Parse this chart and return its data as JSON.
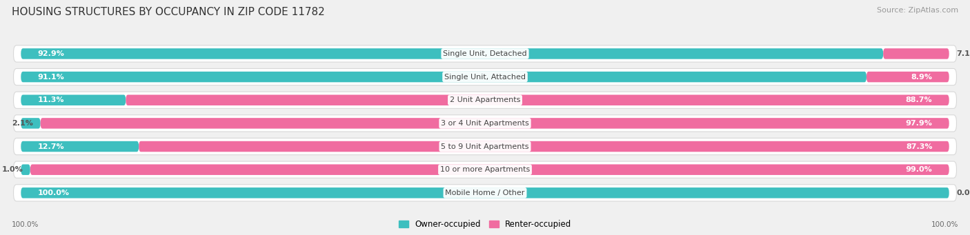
{
  "title": "HOUSING STRUCTURES BY OCCUPANCY IN ZIP CODE 11782",
  "source": "Source: ZipAtlas.com",
  "categories": [
    "Single Unit, Detached",
    "Single Unit, Attached",
    "2 Unit Apartments",
    "3 or 4 Unit Apartments",
    "5 to 9 Unit Apartments",
    "10 or more Apartments",
    "Mobile Home / Other"
  ],
  "owner_pct": [
    92.9,
    91.1,
    11.3,
    2.1,
    12.7,
    1.0,
    100.0
  ],
  "renter_pct": [
    7.1,
    8.9,
    88.7,
    97.9,
    87.3,
    99.0,
    0.0
  ],
  "owner_color": "#3DBFBF",
  "renter_color": "#F06CA0",
  "bg_color": "#F0F0F0",
  "row_bg_color": "#FFFFFF",
  "row_border_color": "#D8D8D8",
  "title_fontsize": 11,
  "source_fontsize": 8,
  "label_fontsize": 8,
  "cat_fontsize": 8
}
